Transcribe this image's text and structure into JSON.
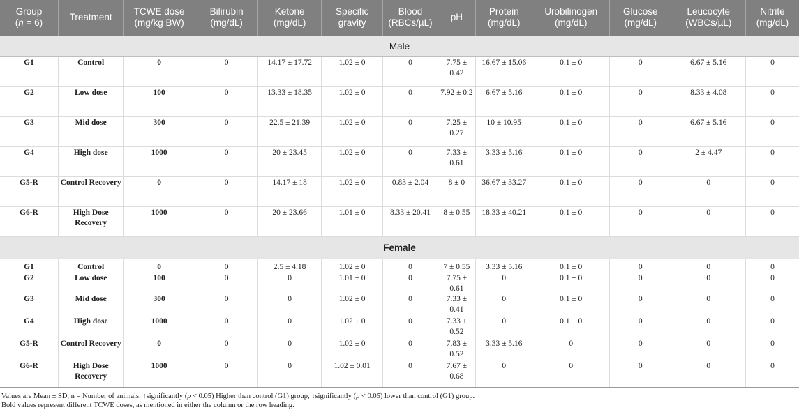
{
  "table": {
    "headers": [
      {
        "line1": "Group",
        "line2_pre": "(",
        "line2_italic": "n",
        "line2_post": " = 6)"
      },
      {
        "line1": "Treatment",
        "line2_pre": "",
        "line2_italic": "",
        "line2_post": ""
      },
      {
        "line1": "TCWE dose",
        "line2_pre": "(mg/kg BW)",
        "line2_italic": "",
        "line2_post": ""
      },
      {
        "line1": "Bilirubin",
        "line2_pre": "(mg/dL)",
        "line2_italic": "",
        "line2_post": ""
      },
      {
        "line1": "Ketone",
        "line2_pre": "(mg/dL)",
        "line2_italic": "",
        "line2_post": ""
      },
      {
        "line1": "Specific",
        "line2_pre": "gravity",
        "line2_italic": "",
        "line2_post": ""
      },
      {
        "line1": "Blood",
        "line2_pre": "(RBCs/µL)",
        "line2_italic": "",
        "line2_post": ""
      },
      {
        "line1": "pH",
        "line2_pre": "",
        "line2_italic": "",
        "line2_post": ""
      },
      {
        "line1": "Protein",
        "line2_pre": "(mg/dL)",
        "line2_italic": "",
        "line2_post": ""
      },
      {
        "line1": "Urobilinogen",
        "line2_pre": "(mg/dL)",
        "line2_italic": "",
        "line2_post": ""
      },
      {
        "line1": "Glucose",
        "line2_pre": "(mg/dL)",
        "line2_italic": "",
        "line2_post": ""
      },
      {
        "line1": "Leucocyte",
        "line2_pre": "(WBCs/µL)",
        "line2_italic": "",
        "line2_post": ""
      },
      {
        "line1": "Nitrite",
        "line2_pre": "(mg/dL)",
        "line2_italic": "",
        "line2_post": ""
      }
    ],
    "male_label": "Male",
    "female_label": "Female",
    "male_rows": [
      {
        "group": "G1",
        "treatment": "Control",
        "dose": "0",
        "bilirubin": "0",
        "ketone": "14.17 ± 17.72",
        "sg": "1.02 ± 0",
        "blood": "0",
        "ph": "7.75 ± 0.42",
        "protein": "16.67 ± 15.06",
        "uro": "0.1 ± 0",
        "glucose": "0",
        "leuco": "6.67 ± 5.16",
        "nitrite": "0"
      },
      {
        "group": "G2",
        "treatment": "Low dose",
        "dose": "100",
        "bilirubin": "0",
        "ketone": "13.33 ± 18.35",
        "sg": "1.02 ± 0",
        "blood": "0",
        "ph": "7.92 ± 0.2",
        "protein": "6.67 ± 5.16",
        "uro": "0.1 ± 0",
        "glucose": "0",
        "leuco": "8.33 ± 4.08",
        "nitrite": "0"
      },
      {
        "group": "G3",
        "treatment": "Mid dose",
        "dose": "300",
        "bilirubin": "0",
        "ketone": "22.5 ± 21.39",
        "sg": "1.02 ± 0",
        "blood": "0",
        "ph": "7.25 ± 0.27",
        "protein": "10 ± 10.95",
        "uro": "0.1 ± 0",
        "glucose": "0",
        "leuco": "6.67 ± 5.16",
        "nitrite": "0"
      },
      {
        "group": "G4",
        "treatment": "High dose",
        "dose": "1000",
        "bilirubin": "0",
        "ketone": "20 ± 23.45",
        "sg": "1.02 ± 0",
        "blood": "0",
        "ph": "7.33 ± 0.61",
        "protein": "3.33 ± 5.16",
        "uro": "0.1 ± 0",
        "glucose": "0",
        "leuco": "2 ± 4.47",
        "nitrite": "0"
      },
      {
        "group": "G5-R",
        "treatment": "Control Recovery",
        "dose": "0",
        "bilirubin": "0",
        "ketone": "14.17 ± 18",
        "sg": "1.02 ± 0",
        "blood": "0.83 ± 2.04",
        "ph": "8 ± 0",
        "protein": "36.67 ± 33.27",
        "uro": "0.1 ± 0",
        "glucose": "0",
        "leuco": "0",
        "nitrite": "0"
      },
      {
        "group": "G6-R",
        "treatment": "High Dose Recovery",
        "dose": "1000",
        "bilirubin": "0",
        "ketone": "20 ± 23.66",
        "sg": "1.01 ± 0",
        "blood": "8.33 ± 20.41",
        "ph": "8 ± 0.55",
        "protein": "18.33 ± 40.21",
        "uro": "0.1 ± 0",
        "glucose": "0",
        "leuco": "0",
        "nitrite": "0"
      }
    ],
    "female_rows": [
      {
        "group": "G1",
        "treatment": "Control",
        "dose": "0",
        "bilirubin": "0",
        "ketone": "2.5 ± 4.18",
        "sg": "1.02 ± 0",
        "blood": "0",
        "ph": "7 ± 0.55",
        "protein": "3.33 ± 5.16",
        "uro": "0.1 ± 0",
        "glucose": "0",
        "leuco": "0",
        "nitrite": "0"
      },
      {
        "group": "G2",
        "treatment": "Low dose",
        "dose": "100",
        "bilirubin": "0",
        "ketone": "0",
        "sg": "1.01 ± 0",
        "blood": "0",
        "ph": "7.75 ± 0.61",
        "protein": "0",
        "uro": "0.1 ± 0",
        "glucose": "0",
        "leuco": "0",
        "nitrite": "0"
      },
      {
        "group": "G3",
        "treatment": "Mid dose",
        "dose": "300",
        "bilirubin": "0",
        "ketone": "0",
        "sg": "1.02 ± 0",
        "blood": "0",
        "ph": "7.33 ± 0.41",
        "protein": "0",
        "uro": "0.1 ± 0",
        "glucose": "0",
        "leuco": "0",
        "nitrite": "0"
      },
      {
        "group": "G4",
        "treatment": "High dose",
        "dose": "1000",
        "bilirubin": "0",
        "ketone": "0",
        "sg": "1.02 ± 0",
        "blood": "0",
        "ph": "7.33 ± 0.52",
        "protein": "0",
        "uro": "0.1 ± 0",
        "glucose": "0",
        "leuco": "0",
        "nitrite": "0"
      },
      {
        "group": "G5-R",
        "treatment": "Control Recovery",
        "dose": "0",
        "bilirubin": "0",
        "ketone": "0",
        "sg": "1.02 ± 0",
        "blood": "0",
        "ph": "7.83 ± 0.52",
        "protein": "3.33 ± 5.16",
        "uro": "0",
        "glucose": "0",
        "leuco": "0",
        "nitrite": "0"
      },
      {
        "group": "G6-R",
        "treatment": "High Dose Recovery",
        "dose": "1000",
        "bilirubin": "0",
        "ketone": "0",
        "sg": "1.02 ± 0.01",
        "blood": "0",
        "ph": "7.67 ± 0.68",
        "protein": "0",
        "uro": "0",
        "glucose": "0",
        "leuco": "0",
        "nitrite": "0"
      }
    ]
  },
  "footnotes": {
    "line1_a": "Values are Mean ± SD, n = Number of animals, ↑significantly (",
    "line1_p1": "p",
    "line1_b": " < 0.05) Higher than control (G1) group, ↓significantly (",
    "line1_p2": "p",
    "line1_c": " < 0.05) lower than control (G1) group.",
    "line2": "Bold values represent different TCWE doses, as mentioned in either the column or the row heading."
  }
}
